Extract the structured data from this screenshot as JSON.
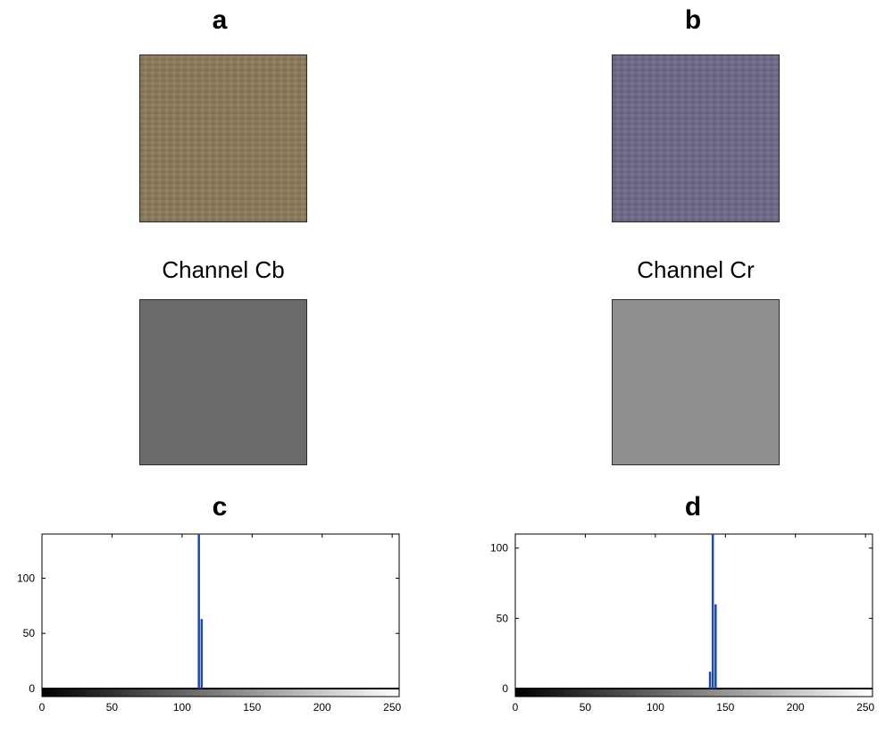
{
  "panels": {
    "a": "a",
    "b": "b",
    "c": "c",
    "d": "d"
  },
  "channel_titles": {
    "cb": "Channel Cb",
    "cr": "Channel Cr"
  },
  "swatch_colors": {
    "a_rgb": "#8c7a59",
    "b_rgb": "#6d6a8a",
    "cb_gray": "#6b6b6b",
    "cr_gray": "#8e8e8e",
    "frame": "#2b2b2b"
  },
  "chart_data": [
    {
      "type": "bar",
      "panel": "c",
      "title": "",
      "xlabel": "",
      "ylabel": "",
      "xlim": [
        0,
        255
      ],
      "ylim": [
        0,
        140
      ],
      "xticks": [
        0,
        50,
        100,
        150,
        200,
        250
      ],
      "yticks": [
        0,
        50,
        100
      ],
      "bars": [
        {
          "x": 112,
          "value": 140
        },
        {
          "x": 114,
          "value": 63
        }
      ],
      "bar_color": "#1f4aa8",
      "colorbar": "grayscale 0-255"
    },
    {
      "type": "bar",
      "panel": "d",
      "title": "",
      "xlabel": "",
      "ylabel": "",
      "xlim": [
        0,
        255
      ],
      "ylim": [
        0,
        110
      ],
      "xticks": [
        0,
        50,
        100,
        150,
        200,
        250
      ],
      "yticks": [
        0,
        50,
        100
      ],
      "bars": [
        {
          "x": 139,
          "value": 12
        },
        {
          "x": 141,
          "value": 110
        },
        {
          "x": 143,
          "value": 60
        }
      ],
      "bar_color": "#1f4aa8",
      "colorbar": "grayscale 0-255"
    }
  ]
}
